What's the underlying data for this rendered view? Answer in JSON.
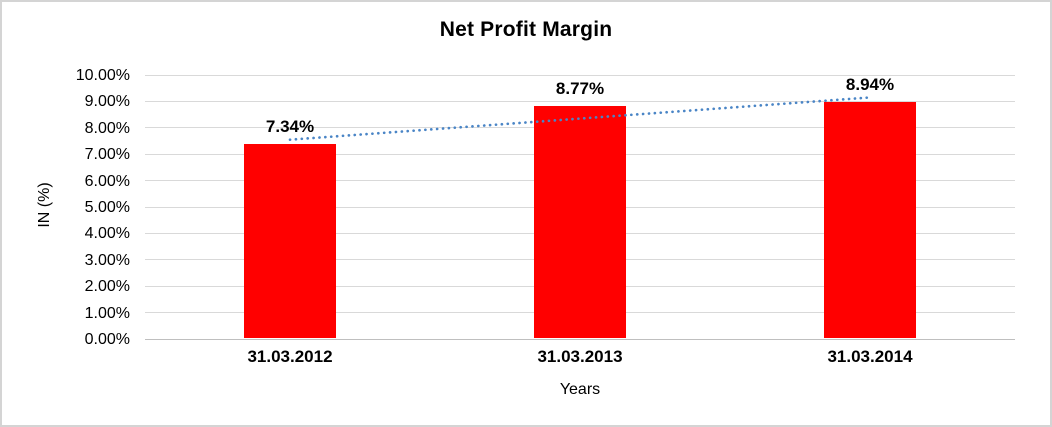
{
  "chart_data": {
    "type": "bar",
    "title": "Net Profit Margin",
    "xlabel": "Years",
    "ylabel": "IN (%)",
    "categories": [
      "31.03.2012",
      "31.03.2013",
      "31.03.2014"
    ],
    "values": [
      7.34,
      8.77,
      8.94
    ],
    "data_labels": [
      "7.34%",
      "8.77%",
      "8.94%"
    ],
    "ylim": [
      0,
      10
    ],
    "ytick_step": 1,
    "ytick_labels": [
      "0.00%",
      "1.00%",
      "2.00%",
      "3.00%",
      "4.00%",
      "5.00%",
      "6.00%",
      "7.00%",
      "8.00%",
      "9.00%",
      "10.00%"
    ],
    "grid": true,
    "legend": "none",
    "bar_color": "#ff0000",
    "trendline": {
      "type": "linear",
      "style": "dotted",
      "color": "#4a85c6",
      "start_value": 7.55,
      "end_value": 9.15
    }
  }
}
